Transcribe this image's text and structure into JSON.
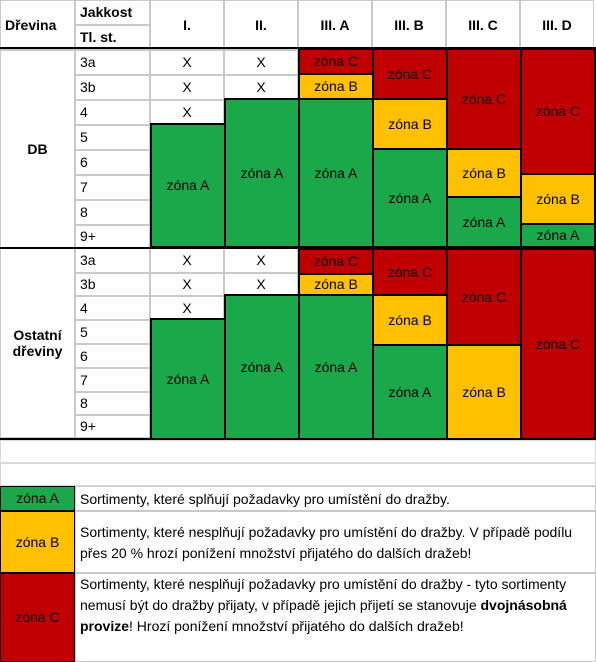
{
  "header": {
    "col1": "Dřevina",
    "col2_top": "Jakkost",
    "col2_bottom": "Tl. st.",
    "classes": [
      "I.",
      "II.",
      "III. A",
      "III. B",
      "III. C",
      "III. D"
    ]
  },
  "groups": [
    {
      "name": "DB"
    },
    {
      "name_line1": "Ostatní",
      "name_line2": "dřeviny"
    }
  ],
  "grades": [
    "3a",
    "3b",
    "4",
    "5",
    "6",
    "7",
    "8",
    "9+"
  ],
  "marks": {
    "x": "X"
  },
  "zones": {
    "A": "zóna A",
    "B": "zóna B",
    "C": "zóna C"
  },
  "colors": {
    "zone_a": "#1aa84a",
    "zone_b": "#ffc000",
    "zone_c": "#c00000"
  },
  "legend": {
    "a_text": "Sortimenty, které splňují požadavky pro umístění do dražby.",
    "b_text": "Sortimenty, které nesplňují požadavky pro umístění do dražby. V případě podílu přes 20 % hrozí ponížení množství přijatého do dalších dražeb!",
    "c_text_before": "Sortimenty, které nesplňují požadavky pro umístění do dražby - tyto sortimenty nemusí být do dražby přijaty, v případě jejich přijetí se stanovuje ",
    "c_text_bold": "dvojnásobná provize",
    "c_text_after": "! Hrozí ponížení množství přijatého do dalších dražeb!"
  }
}
